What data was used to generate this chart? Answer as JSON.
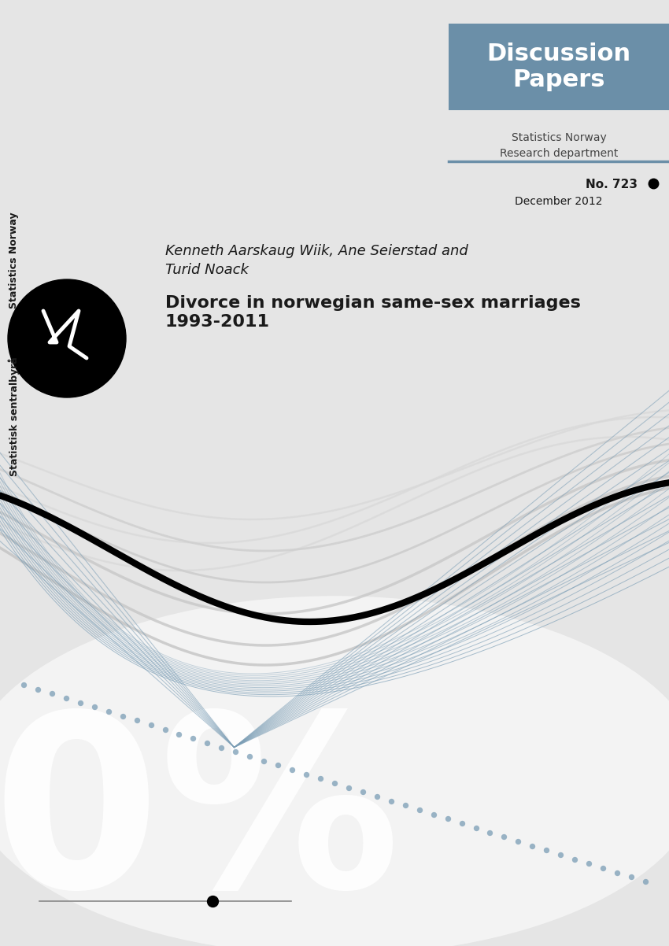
{
  "bg_color": "#e5e5e5",
  "header_box_color": "#6b8fa8",
  "header_box_text": "Discussion\nPapers",
  "subheader_text": "Statistics Norway\nResearch department",
  "divider_color": "#6b8fa8",
  "number_text": "No. 723",
  "date_text": "December 2012",
  "side_text_top": "Statistics Norway",
  "side_text_bottom": "Statistisk sentralbyrå",
  "author_text": "Kenneth Aarskaug Wiik, Ane Seierstad and\nTurid Noack",
  "title_text": "Divorce in norwegian same-sex marriages\n1993-2011",
  "watermark_text": "%",
  "text_color_dark": "#1a1a1a",
  "text_color_medium": "#444444",
  "blue_line_color": "#7a9db5",
  "gray_line_color": "#c0c0c0"
}
